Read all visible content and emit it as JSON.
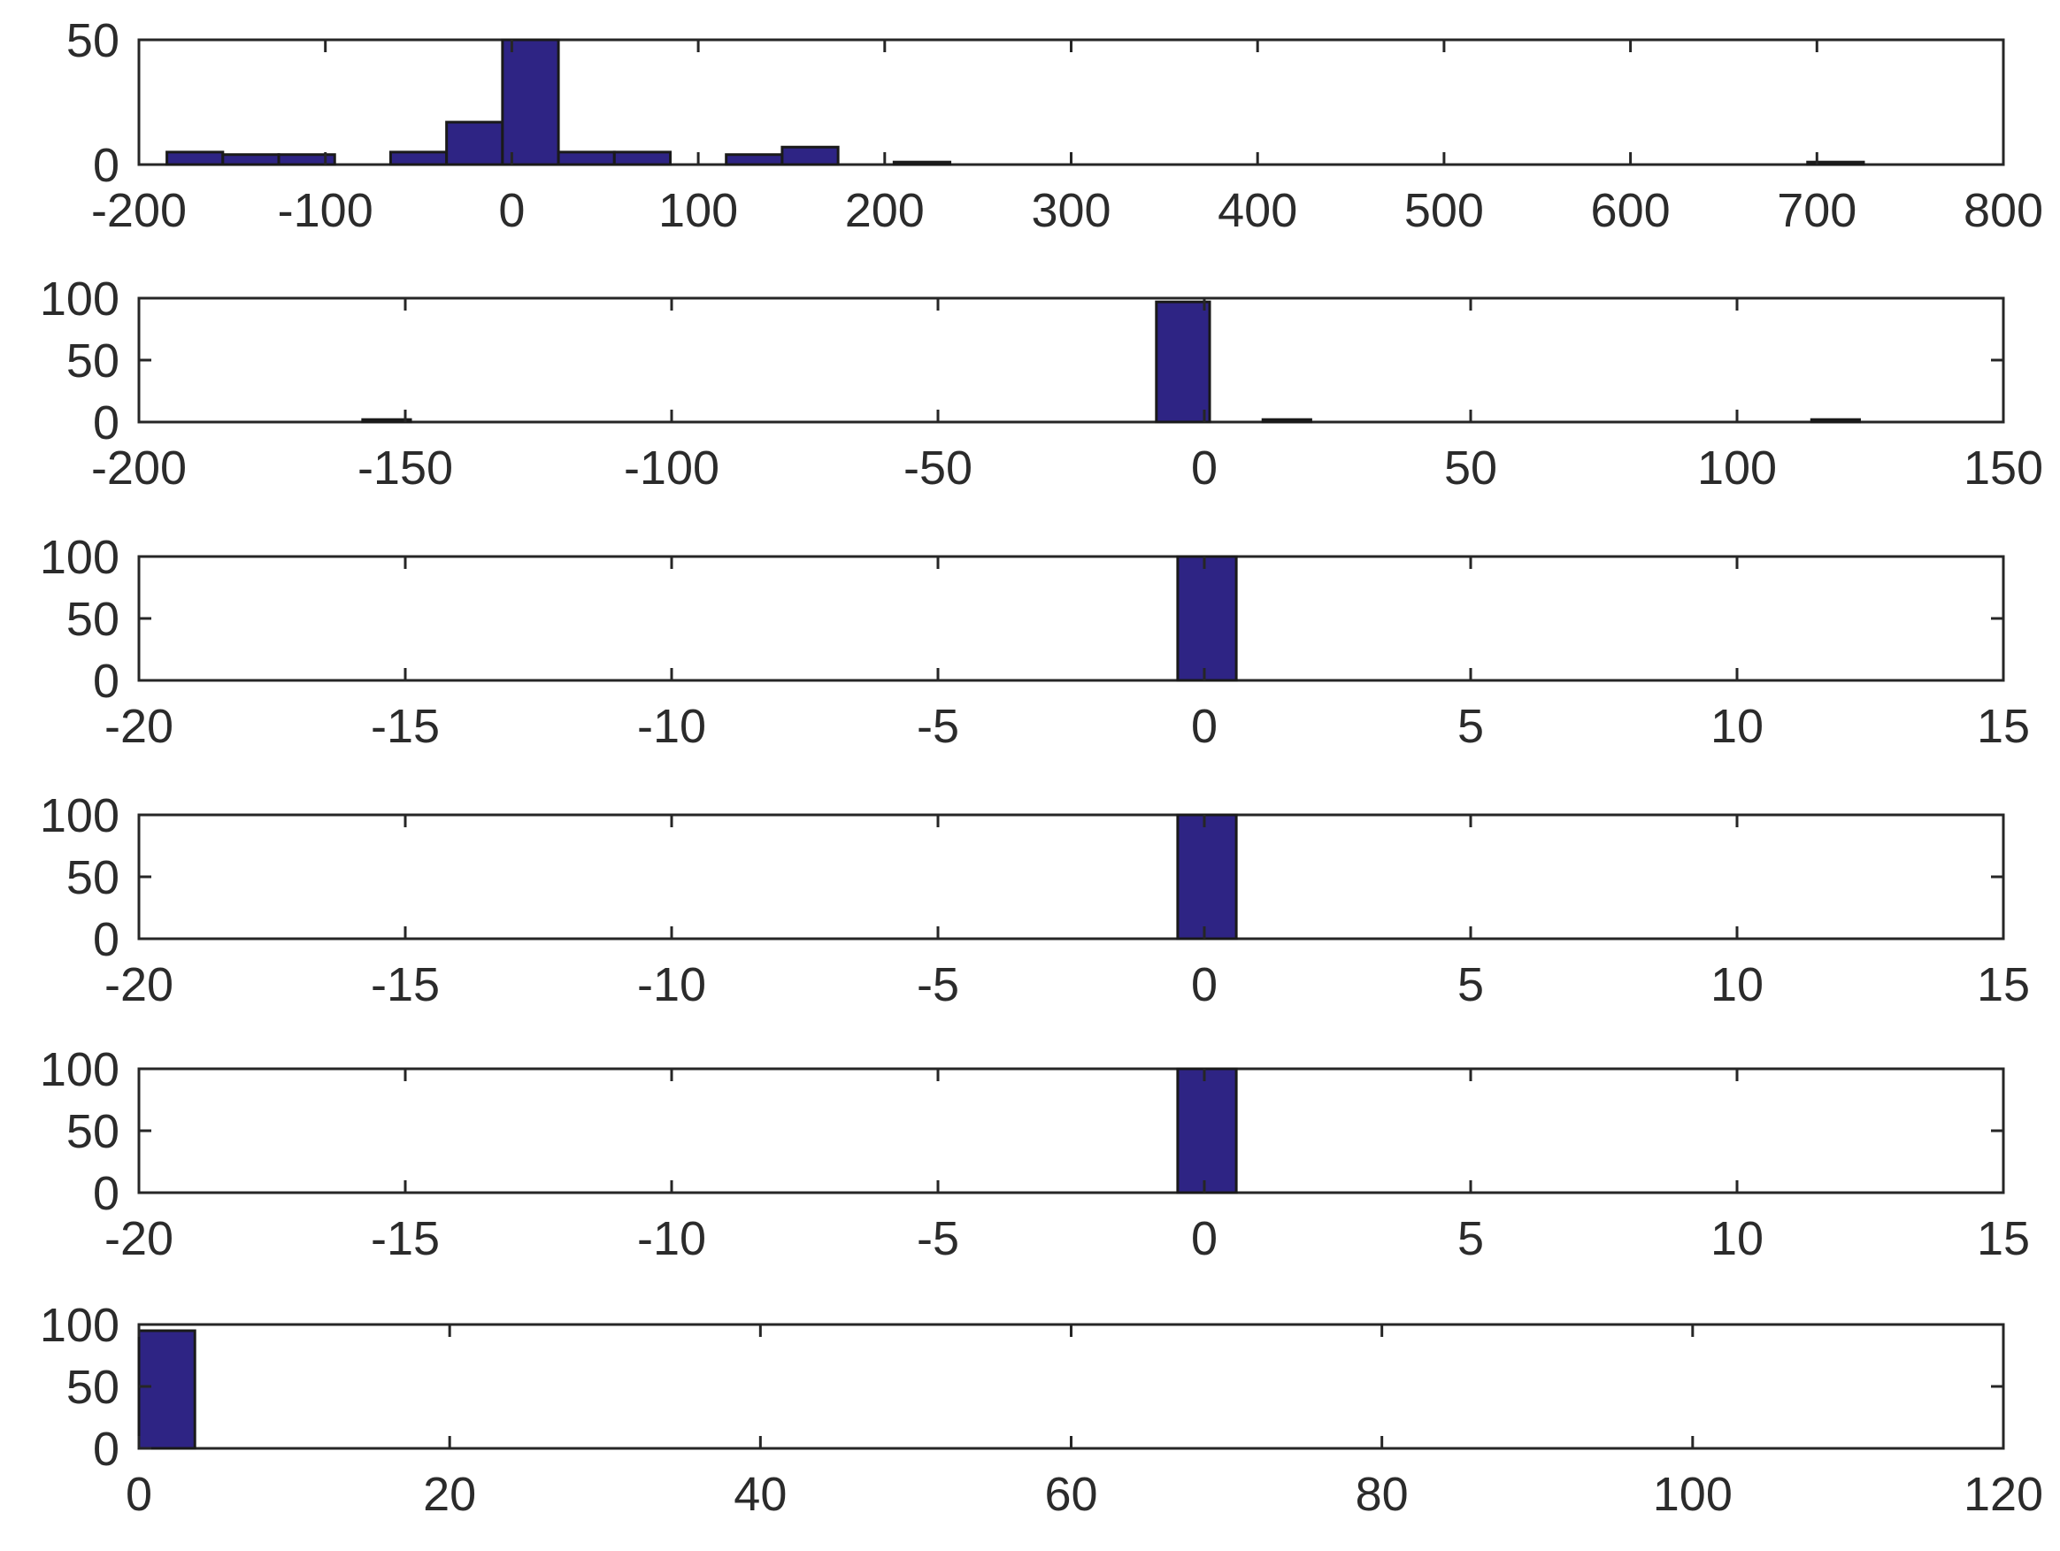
{
  "chart_data": [
    {
      "type": "bar",
      "title": "",
      "xlabel": "",
      "ylabel": "",
      "xlim": [
        -200,
        800
      ],
      "ylim": [
        0,
        50
      ],
      "x_ticks": [
        -200,
        -100,
        0,
        100,
        200,
        300,
        400,
        500,
        600,
        700,
        800
      ],
      "x_tick_labels": [
        "-200",
        "-100",
        "0",
        "100",
        "200",
        "300",
        "400",
        "500",
        "600",
        "700",
        "800"
      ],
      "y_ticks": [
        0,
        50
      ],
      "y_tick_labels": [
        "0",
        "50"
      ],
      "grid": false,
      "bar_color": "#2e2484",
      "bins": [
        {
          "from": -185,
          "to": -155,
          "count": 5
        },
        {
          "from": -155,
          "to": -125,
          "count": 4
        },
        {
          "from": -125,
          "to": -95,
          "count": 4
        },
        {
          "from": -65,
          "to": -35,
          "count": 5
        },
        {
          "from": -35,
          "to": -5,
          "count": 17
        },
        {
          "from": -5,
          "to": 25,
          "count": 50
        },
        {
          "from": 25,
          "to": 55,
          "count": 5
        },
        {
          "from": 55,
          "to": 85,
          "count": 5
        },
        {
          "from": 115,
          "to": 145,
          "count": 4
        },
        {
          "from": 145,
          "to": 175,
          "count": 7
        },
        {
          "from": 205,
          "to": 235,
          "count": 1
        },
        {
          "from": 695,
          "to": 725,
          "count": 1
        }
      ]
    },
    {
      "type": "bar",
      "title": "",
      "xlabel": "",
      "ylabel": "",
      "xlim": [
        -200,
        150
      ],
      "ylim": [
        0,
        100
      ],
      "x_ticks": [
        -200,
        -150,
        -100,
        -50,
        0,
        50,
        100,
        150
      ],
      "x_tick_labels": [
        "-200",
        "-150",
        "-100",
        "-50",
        "0",
        "50",
        "100",
        "150"
      ],
      "y_ticks": [
        0,
        50,
        100
      ],
      "y_tick_labels": [
        "0",
        "50",
        "100"
      ],
      "grid": false,
      "bar_color": "#2e2484",
      "bins": [
        {
          "from": -158,
          "to": -149,
          "count": 2
        },
        {
          "from": -9,
          "to": 1,
          "count": 97
        },
        {
          "from": 11,
          "to": 20,
          "count": 2
        },
        {
          "from": 114,
          "to": 123,
          "count": 2
        }
      ]
    },
    {
      "type": "bar",
      "title": "",
      "xlabel": "",
      "ylabel": "",
      "xlim": [
        -20,
        15
      ],
      "ylim": [
        0,
        100
      ],
      "x_ticks": [
        -20,
        -15,
        -10,
        -5,
        0,
        5,
        10,
        15
      ],
      "x_tick_labels": [
        "-20",
        "-15",
        "-10",
        "-5",
        "0",
        "5",
        "10",
        "15"
      ],
      "y_ticks": [
        0,
        50,
        100
      ],
      "y_tick_labels": [
        "0",
        "50",
        "100"
      ],
      "grid": false,
      "bar_color": "#2e2484",
      "bins": [
        {
          "from": -0.5,
          "to": 0.6,
          "count": 100
        }
      ]
    },
    {
      "type": "bar",
      "title": "",
      "xlabel": "",
      "ylabel": "",
      "xlim": [
        -20,
        15
      ],
      "ylim": [
        0,
        100
      ],
      "x_ticks": [
        -20,
        -15,
        -10,
        -5,
        0,
        5,
        10,
        15
      ],
      "x_tick_labels": [
        "-20",
        "-15",
        "-10",
        "-5",
        "0",
        "5",
        "10",
        "15"
      ],
      "y_ticks": [
        0,
        50,
        100
      ],
      "y_tick_labels": [
        "0",
        "50",
        "100"
      ],
      "grid": false,
      "bar_color": "#2e2484",
      "bins": [
        {
          "from": -0.5,
          "to": 0.6,
          "count": 100
        }
      ]
    },
    {
      "type": "bar",
      "title": "",
      "xlabel": "",
      "ylabel": "",
      "xlim": [
        -20,
        15
      ],
      "ylim": [
        0,
        100
      ],
      "x_ticks": [
        -20,
        -15,
        -10,
        -5,
        0,
        5,
        10,
        15
      ],
      "x_tick_labels": [
        "-20",
        "-15",
        "-10",
        "-5",
        "0",
        "5",
        "10",
        "15"
      ],
      "y_ticks": [
        0,
        50,
        100
      ],
      "y_tick_labels": [
        "0",
        "50",
        "100"
      ],
      "grid": false,
      "bar_color": "#2e2484",
      "bins": [
        {
          "from": -0.5,
          "to": 0.6,
          "count": 100
        }
      ]
    },
    {
      "type": "bar",
      "title": "",
      "xlabel": "",
      "ylabel": "",
      "xlim": [
        0,
        120
      ],
      "ylim": [
        0,
        100
      ],
      "x_ticks": [
        0,
        20,
        40,
        60,
        80,
        100,
        120
      ],
      "x_tick_labels": [
        "0",
        "20",
        "40",
        "60",
        "80",
        "100",
        "120"
      ],
      "y_ticks": [
        0,
        50,
        100
      ],
      "y_tick_labels": [
        "0",
        "50",
        "100"
      ],
      "grid": false,
      "bar_color": "#2e2484",
      "bins": [
        {
          "from": 0,
          "to": 3.6,
          "count": 95
        }
      ]
    }
  ]
}
